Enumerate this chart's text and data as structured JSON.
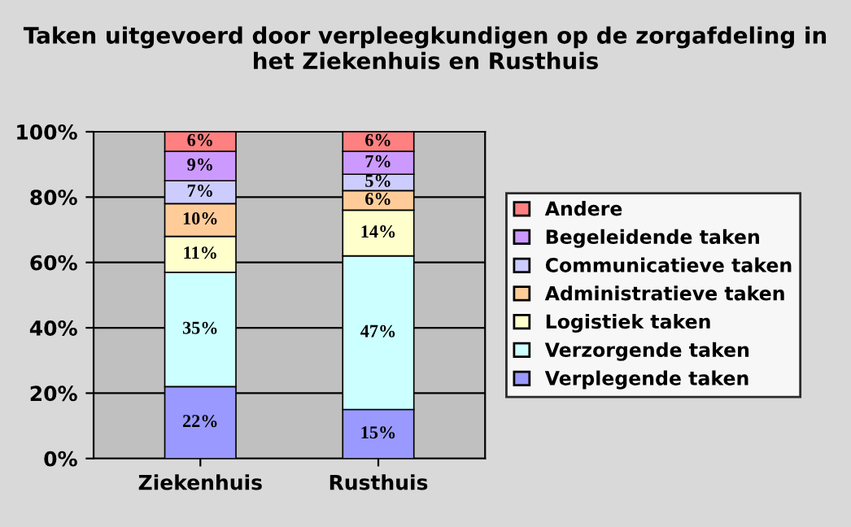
{
  "chart_data": {
    "type": "bar",
    "stacked": true,
    "title": "Taken uitgevoerd door verpleegkundigen op de zorgafdeling in het Ziekenhuis en Rusthuis",
    "categories": [
      "Ziekenhuis",
      "Rusthuis"
    ],
    "series": [
      {
        "name": "Verplegende taken",
        "color": "#9999ff",
        "values": [
          22,
          15
        ],
        "value_labels": [
          "22%",
          "15%"
        ]
      },
      {
        "name": "Verzorgende taken",
        "color": "#ccffff",
        "values": [
          35,
          47
        ],
        "value_labels": [
          "35%",
          "47%"
        ]
      },
      {
        "name": "Logistiek taken",
        "color": "#ffffcc",
        "values": [
          11,
          14
        ],
        "value_labels": [
          "11%",
          "14%"
        ]
      },
      {
        "name": "Administratieve taken",
        "color": "#ffcc99",
        "values": [
          10,
          6
        ],
        "value_labels": [
          "10%",
          "6%"
        ]
      },
      {
        "name": "Communicatieve taken",
        "color": "#ccccff",
        "values": [
          7,
          5
        ],
        "value_labels": [
          "7%",
          "5%"
        ]
      },
      {
        "name": "Begeleidende taken",
        "color": "#cc99ff",
        "values": [
          9,
          7
        ],
        "value_labels": [
          "9%",
          "7%"
        ]
      },
      {
        "name": "Andere",
        "color": "#ff8080",
        "values": [
          6,
          6
        ],
        "value_labels": [
          "6%",
          "6%"
        ]
      }
    ],
    "ylim": [
      0,
      100
    ],
    "yticks": [
      {
        "value": 0,
        "label": "0%"
      },
      {
        "value": 20,
        "label": "20%"
      },
      {
        "value": 40,
        "label": "40%"
      },
      {
        "value": 60,
        "label": "60%"
      },
      {
        "value": 80,
        "label": "80%"
      },
      {
        "value": 100,
        "label": "100%"
      }
    ],
    "grid": "y",
    "legend": "right"
  }
}
